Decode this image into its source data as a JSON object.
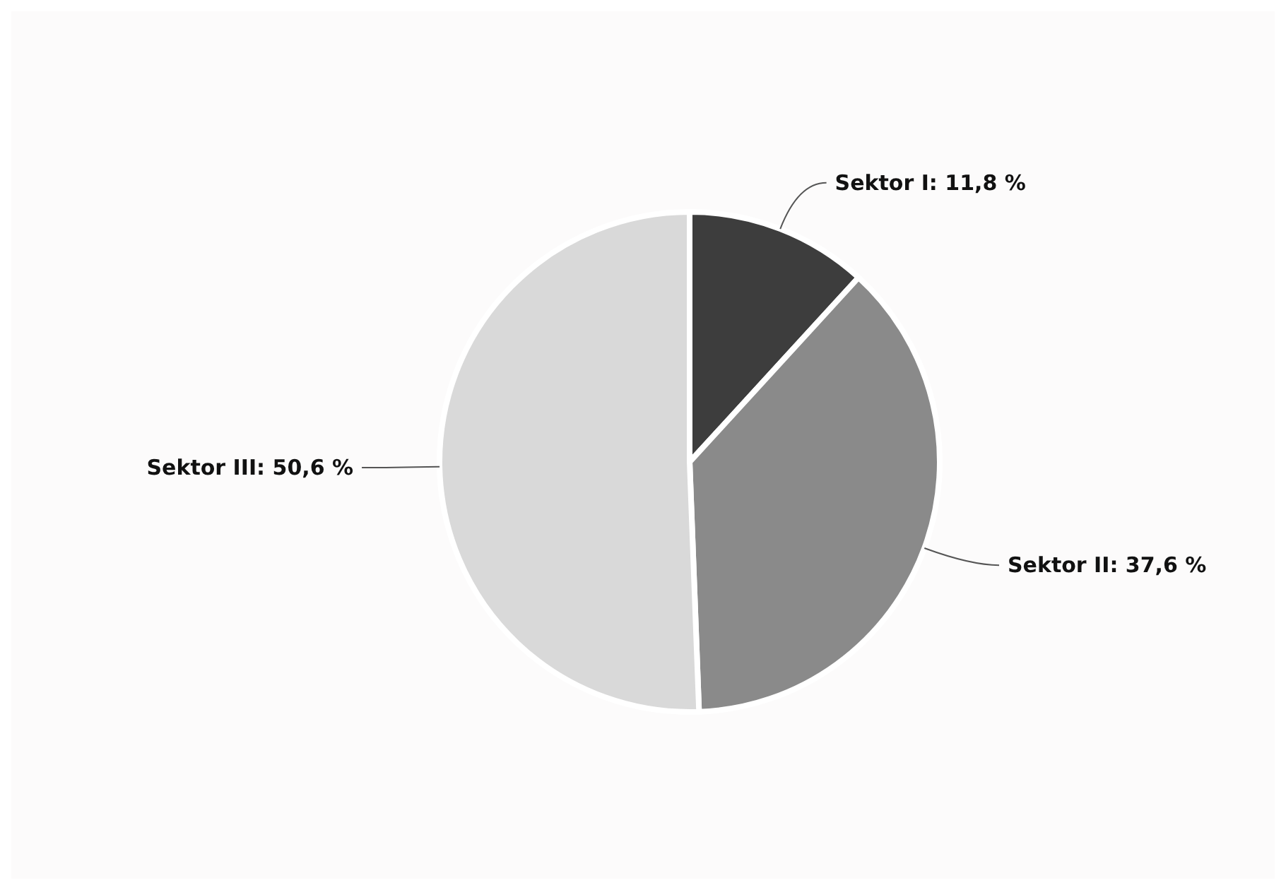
{
  "chart_data": {
    "type": "pie",
    "categories": [
      "Sektor I",
      "Sektor II",
      "Sektor III"
    ],
    "values": [
      11.8,
      37.6,
      50.6
    ],
    "value_labels": [
      "11,8 %",
      "37,6 %",
      "50,6 %"
    ],
    "colors": [
      "#3d3d3d",
      "#8a8a8a",
      "#d9d9d9"
    ]
  }
}
